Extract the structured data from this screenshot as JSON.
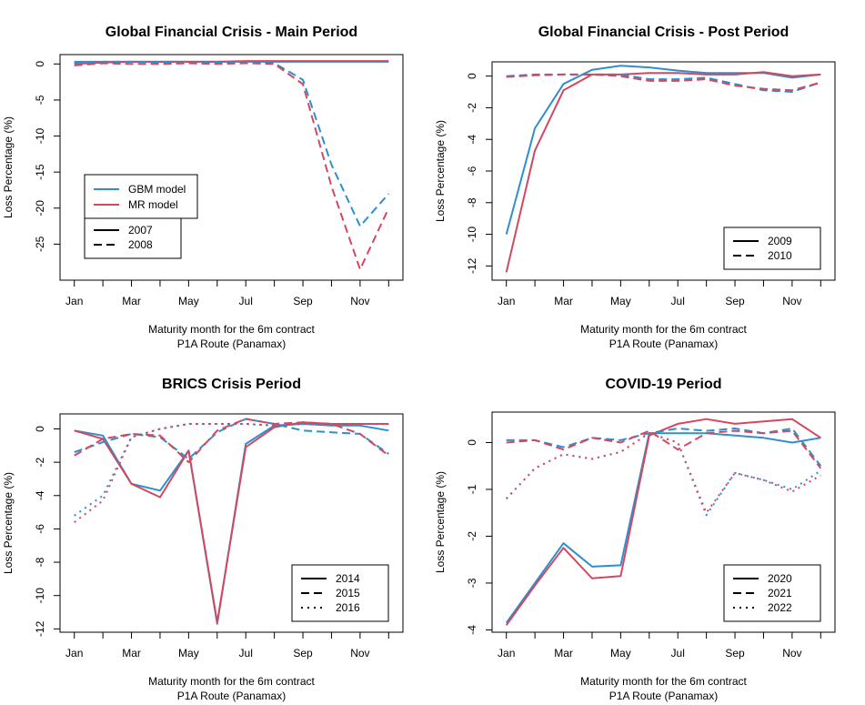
{
  "colors": {
    "gbm": "#2E8FD0",
    "mr": "#D2485F",
    "axis": "#000000"
  },
  "chart_data": [
    {
      "type": "line",
      "title": "Global Financial Crisis - Main Period",
      "xlabel": "Maturity month for the 6m contract",
      "xlabel2": "P1A Route (Panamax)",
      "ylabel": "Loss Percentage (%)",
      "xlim": [
        0.5,
        12.5
      ],
      "ylim": [
        -30,
        1.3
      ],
      "yticks": [
        0,
        -5,
        -10,
        -15,
        -20,
        -25
      ],
      "xticks": [
        "Jan",
        "Mar",
        "May",
        "Jul",
        "Sep",
        "Nov"
      ],
      "model_legend": {
        "position": "middle-left",
        "entries": [
          "GBM model",
          "MR model"
        ]
      },
      "year_legend": {
        "position": "bottom-left",
        "entries": [
          "2007",
          "2008"
        ]
      },
      "series": [
        {
          "model": "GBM model",
          "year": "2007",
          "style": "solid",
          "x": [
            1,
            2,
            3,
            4,
            5,
            6,
            7,
            8,
            9,
            10,
            11,
            12
          ],
          "values": [
            0.3,
            0.3,
            0.3,
            0.3,
            0.3,
            0.3,
            0.3,
            0.3,
            0.3,
            0.3,
            0.3,
            0.3
          ]
        },
        {
          "model": "MR model",
          "year": "2007",
          "style": "solid",
          "x": [
            1,
            2,
            3,
            4,
            5,
            6,
            7,
            8,
            9,
            10,
            11,
            12
          ],
          "values": [
            0.0,
            0.2,
            0.3,
            0.3,
            0.3,
            0.3,
            0.4,
            0.4,
            0.4,
            0.4,
            0.4,
            0.4
          ]
        },
        {
          "model": "GBM model",
          "year": "2008",
          "style": "dashed",
          "x": [
            1,
            2,
            3,
            4,
            5,
            6,
            7,
            8,
            9,
            10,
            11,
            12
          ],
          "values": [
            0.1,
            0.3,
            0.3,
            0.2,
            0.1,
            0.2,
            0.2,
            0.1,
            -2.2,
            -14.0,
            -22.5,
            -18.0
          ]
        },
        {
          "model": "MR model",
          "year": "2008",
          "style": "dashed",
          "x": [
            1,
            2,
            3,
            4,
            5,
            6,
            7,
            8,
            9,
            10,
            11,
            12
          ],
          "values": [
            -0.2,
            0.1,
            0.0,
            0.0,
            0.1,
            0.0,
            0.1,
            0.0,
            -2.8,
            -17.0,
            -28.5,
            -20.0
          ]
        }
      ]
    },
    {
      "type": "line",
      "title": "Global Financial Crisis - Post Period",
      "xlabel": "Maturity month for the 6m contract",
      "xlabel2": "P1A Route (Panamax)",
      "ylabel": "Loss Percentage (%)",
      "xlim": [
        0.5,
        12.5
      ],
      "ylim": [
        -12.9,
        0.9
      ],
      "yticks": [
        0,
        -2,
        -4,
        -6,
        -8,
        -10,
        -12
      ],
      "xticks": [
        "Jan",
        "Mar",
        "May",
        "Jul",
        "Sep",
        "Nov"
      ],
      "year_legend": {
        "position": "bottom-right",
        "entries": [
          "2009",
          "2010"
        ]
      },
      "series": [
        {
          "model": "GBM model",
          "year": "2009",
          "style": "solid",
          "x": [
            1,
            2,
            3,
            4,
            5,
            6,
            7,
            8,
            9,
            10,
            11,
            12
          ],
          "values": [
            -10.0,
            -3.3,
            -0.5,
            0.4,
            0.65,
            0.55,
            0.35,
            0.2,
            0.2,
            0.2,
            -0.1,
            0.1
          ]
        },
        {
          "model": "MR model",
          "year": "2009",
          "style": "solid",
          "x": [
            1,
            2,
            3,
            4,
            5,
            6,
            7,
            8,
            9,
            10,
            11,
            12
          ],
          "values": [
            -12.4,
            -4.7,
            -0.9,
            0.1,
            0.1,
            0.2,
            0.2,
            0.1,
            0.1,
            0.25,
            0.0,
            0.1
          ]
        },
        {
          "model": "GBM model",
          "year": "2010",
          "style": "dashed",
          "x": [
            1,
            2,
            3,
            4,
            5,
            6,
            7,
            8,
            9,
            10,
            11,
            12
          ],
          "values": [
            0.0,
            0.1,
            0.1,
            0.1,
            0.1,
            -0.2,
            -0.2,
            -0.1,
            -0.5,
            -0.9,
            -1.0,
            -0.4
          ]
        },
        {
          "model": "MR model",
          "year": "2010",
          "style": "dashed",
          "x": [
            1,
            2,
            3,
            4,
            5,
            6,
            7,
            8,
            9,
            10,
            11,
            12
          ],
          "values": [
            -0.05,
            0.05,
            0.1,
            0.1,
            0.0,
            -0.3,
            -0.3,
            -0.2,
            -0.6,
            -0.8,
            -0.9,
            -0.4
          ]
        }
      ]
    },
    {
      "type": "line",
      "title": "BRICS Crisis Period",
      "xlabel": "Maturity month for the 6m contract",
      "xlabel2": "P1A Route (Panamax)",
      "ylabel": "Loss Percentage (%)",
      "xlim": [
        0.5,
        12.5
      ],
      "ylim": [
        -12.2,
        0.9
      ],
      "yticks": [
        0,
        -2,
        -4,
        -6,
        -8,
        -10,
        -12
      ],
      "xticks": [
        "Jan",
        "Mar",
        "May",
        "Jul",
        "Sep",
        "Nov"
      ],
      "year_legend": {
        "position": "bottom-right",
        "entries": [
          "2014",
          "2015",
          "2016"
        ]
      },
      "series": [
        {
          "model": "GBM model",
          "year": "2014",
          "style": "solid",
          "x": [
            1,
            2,
            3,
            4,
            5,
            6,
            7,
            8,
            9,
            10,
            11,
            12
          ],
          "values": [
            -0.1,
            -0.4,
            -3.3,
            -3.7,
            -1.3,
            -11.7,
            -0.9,
            0.2,
            0.3,
            0.2,
            0.2,
            -0.1
          ]
        },
        {
          "model": "MR model",
          "year": "2014",
          "style": "solid",
          "x": [
            1,
            2,
            3,
            4,
            5,
            6,
            7,
            8,
            9,
            10,
            11,
            12
          ],
          "values": [
            -0.1,
            -0.6,
            -3.3,
            -4.1,
            -1.3,
            -11.6,
            -1.1,
            0.1,
            0.4,
            0.3,
            0.3,
            0.3
          ]
        },
        {
          "model": "GBM model",
          "year": "2015",
          "style": "dashed",
          "x": [
            1,
            2,
            3,
            4,
            5,
            6,
            7,
            8,
            9,
            10,
            11,
            12
          ],
          "values": [
            -1.4,
            -0.8,
            -0.3,
            -0.5,
            -1.8,
            -0.2,
            0.6,
            0.3,
            -0.1,
            -0.2,
            -0.3,
            -1.5
          ]
        },
        {
          "model": "MR model",
          "year": "2015",
          "style": "dashed",
          "x": [
            1,
            2,
            3,
            4,
            5,
            6,
            7,
            8,
            9,
            10,
            11,
            12
          ],
          "values": [
            -1.6,
            -0.6,
            -0.3,
            -0.4,
            -2.0,
            -0.1,
            0.6,
            0.3,
            0.4,
            0.3,
            -0.3,
            -1.6
          ]
        },
        {
          "model": "GBM model",
          "year": "2016",
          "style": "dotted",
          "x": [
            1,
            2,
            3,
            4,
            5,
            6,
            7,
            8,
            9,
            10,
            11,
            12
          ],
          "values": [
            -5.2,
            -4.0,
            -0.5,
            0.0,
            0.3,
            0.3,
            0.3,
            0.2,
            0.3,
            0.3,
            0.3,
            0.3
          ]
        },
        {
          "model": "MR model",
          "year": "2016",
          "style": "dotted",
          "x": [
            1,
            2,
            3,
            4,
            5,
            6,
            7,
            8,
            9,
            10,
            11,
            12
          ],
          "values": [
            -5.6,
            -4.3,
            -0.5,
            0.0,
            0.3,
            0.3,
            0.3,
            0.2,
            0.3,
            0.3,
            0.3,
            0.3
          ]
        }
      ]
    },
    {
      "type": "line",
      "title": "COVID-19 Period",
      "xlabel": "Maturity month for the 6m contract",
      "xlabel2": "P1A Route (Panamax)",
      "ylabel": "Loss Percentage (%)",
      "xlim": [
        0.5,
        12.5
      ],
      "ylim": [
        -4.05,
        0.65
      ],
      "yticks": [
        0,
        -1,
        -2,
        -3,
        -4
      ],
      "xticks": [
        "Jan",
        "Mar",
        "May",
        "Jul",
        "Sep",
        "Nov"
      ],
      "year_legend": {
        "position": "bottom-right",
        "entries": [
          "2020",
          "2021",
          "2022"
        ]
      },
      "series": [
        {
          "model": "GBM model",
          "year": "2020",
          "style": "solid",
          "x": [
            1,
            2,
            3,
            4,
            5,
            6,
            7,
            8,
            9,
            10,
            11,
            12
          ],
          "values": [
            -3.85,
            -3.0,
            -2.15,
            -2.65,
            -2.62,
            0.2,
            0.2,
            0.2,
            0.15,
            0.1,
            0.0,
            0.1
          ]
        },
        {
          "model": "MR model",
          "year": "2020",
          "style": "solid",
          "x": [
            1,
            2,
            3,
            4,
            5,
            6,
            7,
            8,
            9,
            10,
            11,
            12
          ],
          "values": [
            -3.9,
            -3.05,
            -2.25,
            -2.9,
            -2.85,
            0.15,
            0.4,
            0.5,
            0.4,
            0.45,
            0.5,
            0.1
          ]
        },
        {
          "model": "GBM model",
          "year": "2021",
          "style": "dashed",
          "x": [
            1,
            2,
            3,
            4,
            5,
            6,
            7,
            8,
            9,
            10,
            11,
            12
          ],
          "values": [
            0.05,
            0.05,
            -0.1,
            0.1,
            0.05,
            0.2,
            0.3,
            0.25,
            0.3,
            0.2,
            0.3,
            -0.5
          ]
        },
        {
          "model": "MR model",
          "year": "2021",
          "style": "dashed",
          "x": [
            1,
            2,
            3,
            4,
            5,
            6,
            7,
            8,
            9,
            10,
            11,
            12
          ],
          "values": [
            0.0,
            0.05,
            -0.15,
            0.1,
            0.0,
            0.25,
            -0.15,
            0.2,
            0.25,
            0.2,
            0.25,
            -0.55
          ]
        },
        {
          "model": "GBM model",
          "year": "2022",
          "style": "dotted",
          "x": [
            1,
            2,
            3,
            4,
            5,
            6,
            7,
            8,
            9,
            10,
            11,
            12
          ],
          "values": [
            -1.2,
            -0.55,
            -0.25,
            -0.35,
            -0.2,
            0.2,
            0.0,
            -1.55,
            -0.65,
            -0.8,
            -1.0,
            -0.6
          ]
        },
        {
          "model": "MR model",
          "year": "2022",
          "style": "dotted",
          "x": [
            1,
            2,
            3,
            4,
            5,
            6,
            7,
            8,
            9,
            10,
            11,
            12
          ],
          "values": [
            -1.2,
            -0.55,
            -0.25,
            -0.35,
            -0.2,
            0.2,
            0.0,
            -1.5,
            -0.65,
            -0.8,
            -1.05,
            -0.7
          ]
        }
      ]
    }
  ]
}
